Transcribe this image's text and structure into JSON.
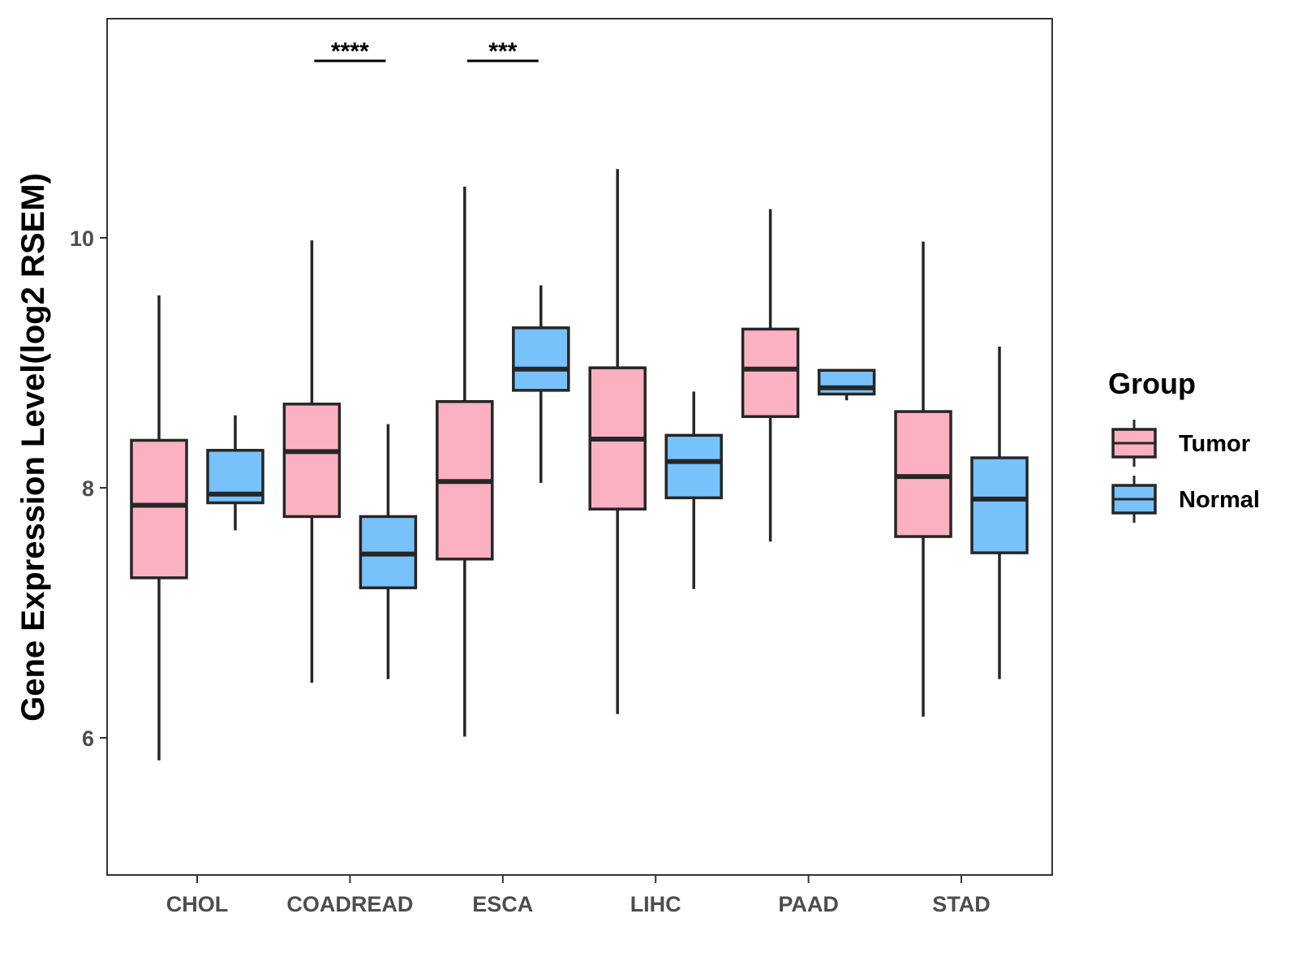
{
  "chart_data": {
    "type": "boxplot",
    "title": "",
    "xlabel": "",
    "ylabel": "Gene Expression Level(log2 RSEM)",
    "ylim": [
      4.9,
      11.75
    ],
    "yticks": [
      6,
      8,
      10
    ],
    "categories": [
      "CHOL",
      "COADREAD",
      "ESCA",
      "LIHC",
      "PAAD",
      "STAD"
    ],
    "legend": {
      "title": "Group",
      "position": "right",
      "entries": [
        {
          "name": "Tumor",
          "color": "#fbb1c2"
        },
        {
          "name": "Normal",
          "color": "#77c2fb"
        }
      ]
    },
    "series": [
      {
        "name": "Tumor",
        "color": "#fbb1c2",
        "boxes": [
          {
            "category": "CHOL",
            "min": 5.82,
            "q1": 7.28,
            "median": 7.86,
            "q3": 8.38,
            "max": 9.54
          },
          {
            "category": "COADREAD",
            "min": 6.44,
            "q1": 7.77,
            "median": 8.29,
            "q3": 8.67,
            "max": 9.98
          },
          {
            "category": "ESCA",
            "min": 6.01,
            "q1": 7.43,
            "median": 8.05,
            "q3": 8.69,
            "max": 10.41
          },
          {
            "category": "LIHC",
            "min": 6.19,
            "q1": 7.83,
            "median": 8.39,
            "q3": 8.96,
            "max": 10.55
          },
          {
            "category": "PAAD",
            "min": 7.57,
            "q1": 8.57,
            "median": 8.95,
            "q3": 9.27,
            "max": 10.23
          },
          {
            "category": "STAD",
            "min": 6.17,
            "q1": 7.61,
            "median": 8.09,
            "q3": 8.61,
            "max": 9.97
          }
        ]
      },
      {
        "name": "Normal",
        "color": "#77c2fb",
        "boxes": [
          {
            "category": "CHOL",
            "min": 7.66,
            "q1": 7.88,
            "median": 7.95,
            "q3": 8.3,
            "max": 8.58
          },
          {
            "category": "COADREAD",
            "min": 6.47,
            "q1": 7.2,
            "median": 7.47,
            "q3": 7.77,
            "max": 8.51
          },
          {
            "category": "ESCA",
            "min": 8.04,
            "q1": 8.78,
            "median": 8.95,
            "q3": 9.28,
            "max": 9.62
          },
          {
            "category": "LIHC",
            "min": 7.19,
            "q1": 7.92,
            "median": 8.21,
            "q3": 8.42,
            "max": 8.77
          },
          {
            "category": "PAAD",
            "min": 8.7,
            "q1": 8.75,
            "median": 8.8,
            "q3": 8.94,
            "max": 8.94
          },
          {
            "category": "STAD",
            "min": 6.47,
            "q1": 7.48,
            "median": 7.91,
            "q3": 8.24,
            "max": 9.13
          }
        ]
      }
    ],
    "annotations": [
      {
        "category": "COADREAD",
        "text": "****"
      },
      {
        "category": "ESCA",
        "text": "***"
      }
    ]
  }
}
